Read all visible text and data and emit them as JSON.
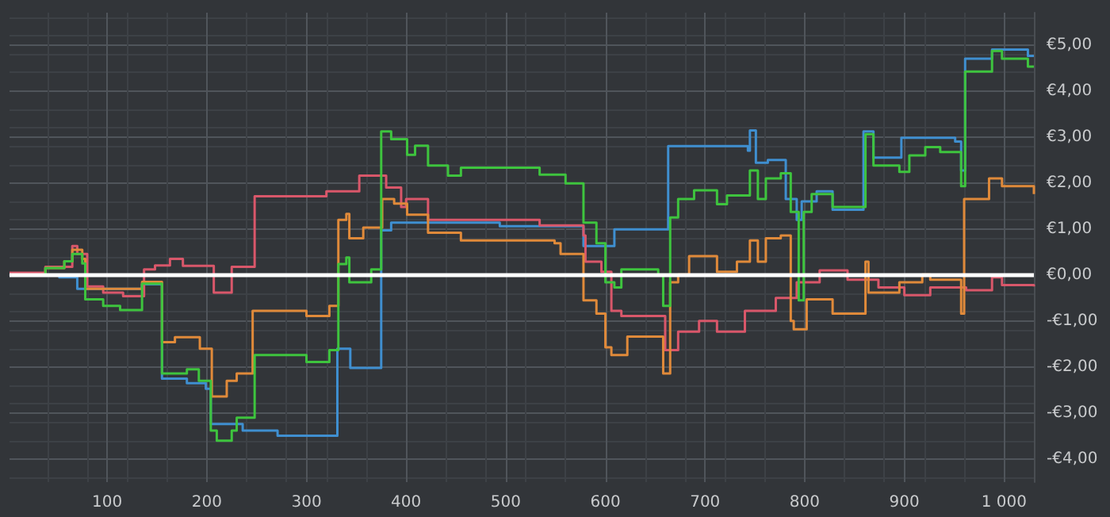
{
  "chart_data": {
    "type": "step",
    "xlim": [
      2,
      1030
    ],
    "xticks": [
      100,
      200,
      300,
      400,
      500,
      600,
      700,
      800,
      900,
      {
        "value": 1000,
        "label": "1 000"
      }
    ],
    "ylim": [
      -4.5,
      5.7
    ],
    "yticks": [
      {
        "value": -4,
        "label": "-€4,00"
      },
      {
        "value": -3,
        "label": "-€3,00"
      },
      {
        "value": -2,
        "label": "-€2,00"
      },
      {
        "value": -1,
        "label": "-€1,00"
      },
      {
        "value": 0,
        "label": "€0,00"
      },
      {
        "value": 1,
        "label": "€1,00"
      },
      {
        "value": 2,
        "label": "€2,00"
      },
      {
        "value": 3,
        "label": "€3,00"
      },
      {
        "value": 4,
        "label": "€4,00"
      },
      {
        "value": 5,
        "label": "€5,00"
      }
    ],
    "grid": true,
    "ref_lines": [
      {
        "axis": "y",
        "value": 0,
        "color": "#ffffff"
      }
    ],
    "series": [
      {
        "color": "#3f8fd0",
        "x": [
          2,
          52,
          70,
          135,
          155,
          180,
          199,
          204,
          236,
          271,
          331,
          344,
          375,
          385,
          494,
          578,
          609,
          663,
          743,
          745,
          751,
          763,
          781,
          792,
          797,
          812,
          828,
          859,
          869,
          897,
          951,
          957,
          961,
          988,
          1024,
          1030
        ],
        "values": [
          0,
          -0.05,
          -0.3,
          -0.2,
          -2.25,
          -2.35,
          -2.47,
          -3.24,
          -3.38,
          -3.49,
          -1.6,
          -2.02,
          0.97,
          1.14,
          1.06,
          0.63,
          0.99,
          2.8,
          2.7,
          3.14,
          2.44,
          2.5,
          1.65,
          1.2,
          1.6,
          1.82,
          1.42,
          3.12,
          2.55,
          2.98,
          2.9,
          2.27,
          4.7,
          4.9,
          4.76,
          4.76
        ]
      },
      {
        "color": "#d9576a",
        "x": [
          2,
          38,
          65,
          70,
          80,
          96,
          116,
          137,
          148,
          163,
          176,
          207,
          225,
          248,
          320,
          353,
          380,
          395,
          400,
          422,
          534,
          578,
          580,
          596,
          606,
          616,
          660,
          673,
          694,
          712,
          740,
          771,
          792,
          815,
          843,
          874,
          900,
          926,
          962,
          988,
          998,
          1030
        ],
        "values": [
          0.05,
          0.18,
          0.63,
          0.46,
          -0.25,
          -0.38,
          -0.46,
          0.12,
          0.21,
          0.35,
          0.2,
          -0.38,
          0.18,
          1.71,
          1.82,
          2.16,
          1.9,
          1.48,
          1.65,
          1.2,
          1.08,
          0.86,
          0.29,
          0.07,
          -0.78,
          -0.89,
          -1.63,
          -1.23,
          -1.0,
          -1.23,
          -0.78,
          -0.5,
          -0.16,
          0.1,
          -0.1,
          -0.27,
          -0.44,
          -0.27,
          -0.33,
          -0.05,
          -0.22,
          -0.25
        ]
      },
      {
        "color": "#e08a3a",
        "x": [
          2,
          38,
          57,
          65,
          75,
          78,
          135,
          155,
          168,
          193,
          205,
          220,
          230,
          246,
          300,
          323,
          332,
          340,
          343,
          357,
          376,
          388,
          401,
          422,
          455,
          549,
          555,
          578,
          591,
          600,
          606,
          622,
          658,
          665,
          673,
          684,
          712,
          732,
          745,
          753,
          761,
          776,
          786,
          789,
          802,
          828,
          861,
          864,
          895,
          918,
          926,
          957,
          960,
          985,
          998,
          1030
        ],
        "values": [
          0,
          0.15,
          0.3,
          0.55,
          0.35,
          -0.3,
          -0.15,
          -1.46,
          -1.35,
          -1.6,
          -2.64,
          -2.3,
          -2.14,
          -0.78,
          -0.89,
          -0.67,
          1.2,
          1.33,
          0.8,
          1.03,
          1.65,
          1.55,
          1.31,
          0.92,
          0.75,
          0.69,
          0.46,
          -0.55,
          -0.84,
          -1.57,
          -1.74,
          -1.34,
          -2.14,
          -0.16,
          0.01,
          0.41,
          0.07,
          0.29,
          0.75,
          0.29,
          0.8,
          0.86,
          -1.0,
          -1.18,
          -0.53,
          -0.84,
          0.29,
          -0.38,
          -0.16,
          0.01,
          -0.1,
          -0.84,
          1.65,
          2.1,
          1.93,
          1.76
        ]
      },
      {
        "color": "#3ec43e",
        "x": [
          2,
          38,
          57,
          65,
          75,
          78,
          96,
          113,
          135,
          155,
          180,
          192,
          204,
          210,
          225,
          230,
          248,
          300,
          323,
          332,
          340,
          343,
          365,
          375,
          385,
          401,
          409,
          422,
          442,
          455,
          534,
          560,
          578,
          591,
          600,
          609,
          616,
          653,
          658,
          665,
          673,
          689,
          712,
          722,
          745,
          753,
          761,
          776,
          786,
          794,
          799,
          807,
          828,
          861,
          869,
          895,
          905,
          921,
          936,
          957,
          961,
          988,
          998,
          1024,
          1030
        ],
        "values": [
          0,
          0.15,
          0.3,
          0.46,
          0.25,
          -0.53,
          -0.67,
          -0.76,
          -0.19,
          -2.14,
          -2.05,
          -2.3,
          -3.38,
          -3.6,
          -3.38,
          -3.1,
          -1.74,
          -1.89,
          -1.63,
          0.24,
          0.38,
          -0.16,
          0.12,
          3.12,
          2.95,
          2.61,
          2.81,
          2.38,
          2.16,
          2.33,
          2.18,
          1.99,
          1.14,
          0.69,
          -0.16,
          -0.27,
          0.12,
          0.0,
          -0.67,
          1.25,
          1.65,
          1.84,
          1.54,
          1.73,
          2.27,
          1.65,
          2.1,
          2.21,
          1.37,
          -0.55,
          1.37,
          1.76,
          1.48,
          3.06,
          2.38,
          2.24,
          2.6,
          2.78,
          2.67,
          1.93,
          4.42,
          4.87,
          4.7,
          4.53,
          4.53
        ]
      }
    ]
  }
}
